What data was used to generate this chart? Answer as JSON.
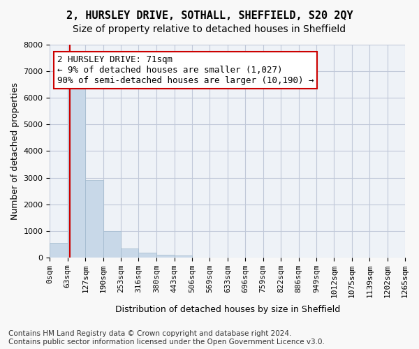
{
  "title_line1": "2, HURSLEY DRIVE, SOTHALL, SHEFFIELD, S20 2QY",
  "title_line2": "Size of property relative to detached houses in Sheffield",
  "xlabel": "Distribution of detached houses by size in Sheffield",
  "ylabel": "Number of detached properties",
  "bar_color": "#c8d8e8",
  "bar_edgecolor": "#a0b8cc",
  "grid_color": "#c0c8d8",
  "background_color": "#eef2f7",
  "bin_edges": [
    0,
    63,
    127,
    190,
    253,
    316,
    380,
    443,
    506,
    569,
    633,
    696,
    759,
    822,
    886,
    949,
    1012,
    1075,
    1139,
    1202,
    1265
  ],
  "bin_labels": [
    "0sqm",
    "63sqm",
    "127sqm",
    "190sqm",
    "253sqm",
    "316sqm",
    "380sqm",
    "443sqm",
    "506sqm",
    "569sqm",
    "633sqm",
    "696sqm",
    "759sqm",
    "822sqm",
    "886sqm",
    "949sqm",
    "1012sqm",
    "1075sqm",
    "1139sqm",
    "1202sqm",
    "1265sqm"
  ],
  "bar_values": [
    550,
    6400,
    2900,
    1000,
    350,
    175,
    100,
    75,
    0,
    0,
    0,
    0,
    0,
    0,
    0,
    0,
    0,
    0,
    0,
    0
  ],
  "red_line_x": 71,
  "annotation_text": "2 HURSLEY DRIVE: 71sqm\n← 9% of detached houses are smaller (1,027)\n90% of semi-detached houses are larger (10,190) →",
  "annotation_box_color": "#ffffff",
  "annotation_box_edgecolor": "#cc0000",
  "red_line_color": "#cc0000",
  "ylim": [
    0,
    8000
  ],
  "yticks": [
    0,
    1000,
    2000,
    3000,
    4000,
    5000,
    6000,
    7000,
    8000
  ],
  "footer_line1": "Contains HM Land Registry data © Crown copyright and database right 2024.",
  "footer_line2": "Contains public sector information licensed under the Open Government Licence v3.0.",
  "title_fontsize": 11,
  "subtitle_fontsize": 10,
  "axis_label_fontsize": 9,
  "tick_fontsize": 8,
  "annotation_fontsize": 9,
  "footer_fontsize": 7.5
}
